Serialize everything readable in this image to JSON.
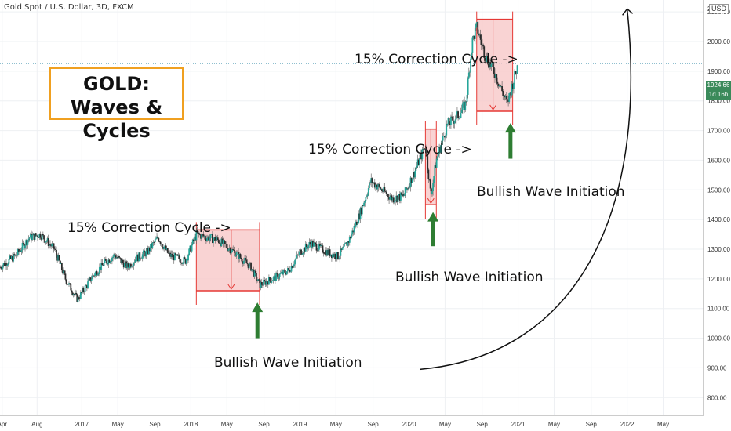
{
  "header": {
    "symbol_info": "Gold Spot / U.S. Dollar, 3D, FXCM",
    "currency": "USD"
  },
  "chart_data": {
    "type": "candlestick",
    "title_line1": "GOLD:",
    "title_line2": "Waves & Cycles",
    "last_price_label": "1924.66",
    "countdown": "1d 16h",
    "colors": {
      "up": "#26a69a",
      "down": "#ef5350",
      "candle_body": "#333333",
      "box_fill": "#f8c8c8",
      "box_line": "#e53935",
      "arrow": "#2e7d32",
      "title_border": "#f0a020",
      "grid": "#eef0f3",
      "price_line": "#8fbfcf"
    },
    "y_axis": {
      "ylim": [
        740,
        2140
      ],
      "ticks": [
        800,
        900,
        1000,
        1100,
        1200,
        1300,
        1400,
        1500,
        1600,
        1700,
        1800,
        1900,
        2000,
        2100
      ],
      "tick_labels": [
        "800.00",
        "900.00",
        "1000.00",
        "1100.00",
        "1200.00",
        "1300.00",
        "1400.00",
        "1500.00",
        "1600.00",
        "1700.00",
        "1800.00",
        "1900.00",
        "2000.00",
        "2100.00"
      ],
      "top_label": "2"
    },
    "x_axis": {
      "xlim": [
        2016.25,
        2022.7
      ],
      "ticks": [
        {
          "t": 2016.27,
          "label": "Apr"
        },
        {
          "t": 2016.59,
          "label": "Aug"
        },
        {
          "t": 2017.0,
          "label": "2017"
        },
        {
          "t": 2017.33,
          "label": "May"
        },
        {
          "t": 2017.67,
          "label": "Sep"
        },
        {
          "t": 2018.0,
          "label": "2018"
        },
        {
          "t": 2018.33,
          "label": "May"
        },
        {
          "t": 2018.67,
          "label": "Sep"
        },
        {
          "t": 2019.0,
          "label": "2019"
        },
        {
          "t": 2019.33,
          "label": "May"
        },
        {
          "t": 2019.67,
          "label": "Sep"
        },
        {
          "t": 2020.0,
          "label": "2020"
        },
        {
          "t": 2020.33,
          "label": "May"
        },
        {
          "t": 2020.67,
          "label": "Sep"
        },
        {
          "t": 2021.0,
          "label": "2021"
        },
        {
          "t": 2021.33,
          "label": "May"
        },
        {
          "t": 2021.67,
          "label": "Sep"
        },
        {
          "t": 2022.0,
          "label": "2022"
        },
        {
          "t": 2022.33,
          "label": "May"
        }
      ]
    },
    "last_price": 1924.66,
    "price_path": [
      {
        "t": 2016.25,
        "p": 1240
      },
      {
        "t": 2016.4,
        "p": 1280
      },
      {
        "t": 2016.52,
        "p": 1340
      },
      {
        "t": 2016.62,
        "p": 1350
      },
      {
        "t": 2016.75,
        "p": 1300
      },
      {
        "t": 2016.85,
        "p": 1200
      },
      {
        "t": 2016.96,
        "p": 1130
      },
      {
        "t": 2017.1,
        "p": 1210
      },
      {
        "t": 2017.2,
        "p": 1250
      },
      {
        "t": 2017.3,
        "p": 1280
      },
      {
        "t": 2017.42,
        "p": 1240
      },
      {
        "t": 2017.5,
        "p": 1270
      },
      {
        "t": 2017.6,
        "p": 1290
      },
      {
        "t": 2017.7,
        "p": 1340
      },
      {
        "t": 2017.8,
        "p": 1280
      },
      {
        "t": 2017.95,
        "p": 1260
      },
      {
        "t": 2018.05,
        "p": 1350
      },
      {
        "t": 2018.25,
        "p": 1330
      },
      {
        "t": 2018.4,
        "p": 1290
      },
      {
        "t": 2018.55,
        "p": 1240
      },
      {
        "t": 2018.63,
        "p": 1180
      },
      {
        "t": 2018.75,
        "p": 1200
      },
      {
        "t": 2018.9,
        "p": 1230
      },
      {
        "t": 2019.0,
        "p": 1290
      },
      {
        "t": 2019.1,
        "p": 1320
      },
      {
        "t": 2019.25,
        "p": 1290
      },
      {
        "t": 2019.35,
        "p": 1275
      },
      {
        "t": 2019.45,
        "p": 1330
      },
      {
        "t": 2019.55,
        "p": 1420
      },
      {
        "t": 2019.65,
        "p": 1530
      },
      {
        "t": 2019.75,
        "p": 1500
      },
      {
        "t": 2019.85,
        "p": 1470
      },
      {
        "t": 2019.95,
        "p": 1480
      },
      {
        "t": 2020.05,
        "p": 1560
      },
      {
        "t": 2020.15,
        "p": 1650
      },
      {
        "t": 2020.2,
        "p": 1480
      },
      {
        "t": 2020.25,
        "p": 1600
      },
      {
        "t": 2020.35,
        "p": 1720
      },
      {
        "t": 2020.45,
        "p": 1750
      },
      {
        "t": 2020.52,
        "p": 1790
      },
      {
        "t": 2020.58,
        "p": 2000
      },
      {
        "t": 2020.62,
        "p": 2050
      },
      {
        "t": 2020.7,
        "p": 1950
      },
      {
        "t": 2020.78,
        "p": 1900
      },
      {
        "t": 2020.9,
        "p": 1790
      },
      {
        "t": 2021.0,
        "p": 1924.66
      }
    ],
    "correction_boxes": [
      {
        "t0": 2018.05,
        "t1": 2018.63,
        "p_top": 1365,
        "p_bottom": 1160,
        "t_mid": 2018.37
      },
      {
        "t0": 2020.15,
        "t1": 2020.25,
        "p_top": 1705,
        "p_bottom": 1450,
        "t_mid": 2020.2
      },
      {
        "t0": 2020.62,
        "t1": 2020.95,
        "p_top": 2075,
        "p_bottom": 1765,
        "t_mid": 2020.77
      }
    ],
    "bullish_arrows": [
      {
        "t": 2018.61,
        "p_from": 1000,
        "p_to": 1120
      },
      {
        "t": 2020.22,
        "p_from": 1310,
        "p_to": 1425
      },
      {
        "t": 2020.93,
        "p_from": 1605,
        "p_to": 1725
      }
    ],
    "projection_curve": [
      {
        "t": 2020.1,
        "p": 895
      },
      {
        "t": 2021.5,
        "p": 940
      },
      {
        "t": 2022.2,
        "p": 1400
      },
      {
        "t": 2022.0,
        "p": 2110
      }
    ],
    "annotations": [
      {
        "text": "15% Correction Cycle ->"
      },
      {
        "text": "15% Correction Cycle ->"
      },
      {
        "text": "15% Correction Cycle ->"
      },
      {
        "text": "Bullish Wave Initiation"
      },
      {
        "text": "Bullish Wave Initiation"
      },
      {
        "text": "Bullish Wave Initiation"
      }
    ]
  }
}
